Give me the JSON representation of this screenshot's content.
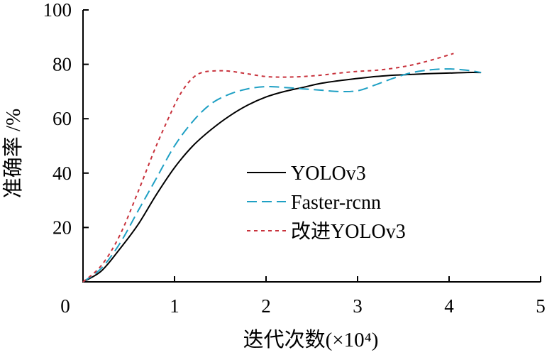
{
  "chart_data": {
    "type": "line",
    "title": "",
    "xlabel": "迭代次数(×10⁴)",
    "ylabel": "准确率 /%",
    "xlim": [
      0,
      5
    ],
    "ylim": [
      0,
      100
    ],
    "x_ticks": [
      "0",
      "1",
      "2",
      "3",
      "4",
      "5"
    ],
    "y_ticks": [
      "20",
      "40",
      "60",
      "80",
      "100"
    ],
    "grid": false,
    "legend_position": "center-right",
    "series": [
      {
        "name": "YOLOv3",
        "color": "#000000",
        "dash": "solid",
        "x": [
          0,
          0.2,
          0.4,
          0.6,
          0.8,
          1.0,
          1.2,
          1.4,
          1.6,
          1.8,
          2.0,
          2.2,
          2.4,
          2.6,
          2.8,
          3.0,
          3.2,
          3.4,
          3.6,
          3.8,
          4.0,
          4.2,
          4.35
        ],
        "y": [
          0,
          4,
          12,
          21,
          32,
          42,
          50,
          56,
          61,
          65,
          68,
          70,
          71.5,
          73,
          74,
          74.8,
          75.5,
          76,
          76.3,
          76.6,
          76.8,
          77,
          77
        ]
      },
      {
        "name": "Faster-rcnn",
        "color": "#1fa0c4",
        "dash": "dashed",
        "x": [
          0,
          0.2,
          0.4,
          0.6,
          0.8,
          1.0,
          1.2,
          1.4,
          1.6,
          1.8,
          2.0,
          2.2,
          2.4,
          2.6,
          2.8,
          3.0,
          3.2,
          3.4,
          3.6,
          3.8,
          4.0,
          4.2,
          4.35
        ],
        "y": [
          0,
          5,
          14,
          26,
          38,
          50,
          59,
          65.5,
          69,
          71,
          71.8,
          71.5,
          71,
          70.5,
          70,
          70.3,
          72.5,
          75,
          77,
          78,
          78.3,
          77.8,
          77
        ]
      },
      {
        "name": "改进YOLOv3",
        "color": "#c8323c",
        "dash": "dotted",
        "x": [
          0,
          0.2,
          0.4,
          0.6,
          0.8,
          1.0,
          1.1,
          1.2,
          1.3,
          1.45,
          1.6,
          1.8,
          2.0,
          2.2,
          2.4,
          2.6,
          2.8,
          3.0,
          3.2,
          3.4,
          3.6,
          3.8,
          4.05
        ],
        "y": [
          0,
          6,
          17,
          33,
          50,
          65,
          71,
          75,
          77,
          77.6,
          77.5,
          76.5,
          75.5,
          75.3,
          75.5,
          76,
          76.8,
          77.4,
          77.8,
          78.6,
          79.8,
          81.5,
          84
        ]
      }
    ]
  }
}
